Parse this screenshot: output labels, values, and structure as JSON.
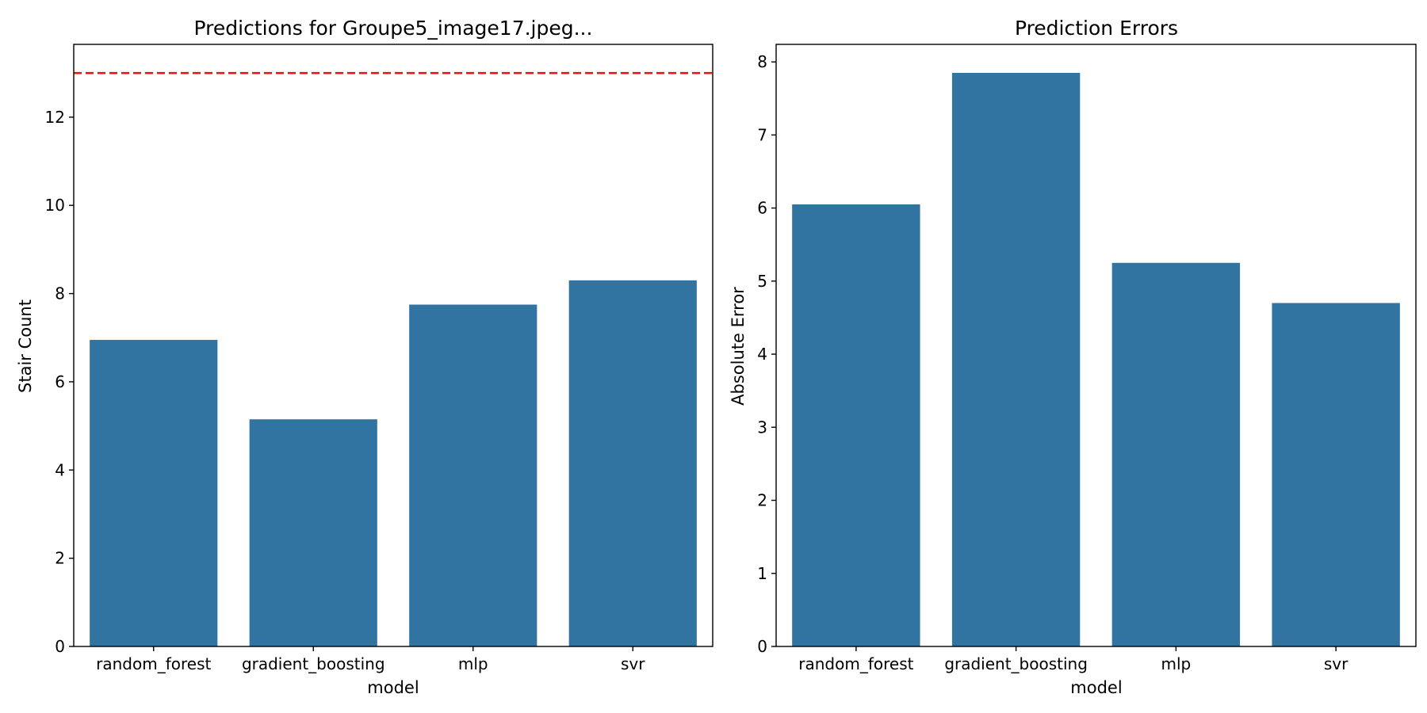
{
  "colors": {
    "bar": "#3274a1",
    "reference_line": "#e8141c"
  },
  "chart_data": [
    {
      "type": "bar",
      "title": "Predictions for Groupe5_image17.jpeg...",
      "xlabel": "model",
      "ylabel": "Stair Count",
      "categories": [
        "random_forest",
        "gradient_boosting",
        "mlp",
        "svr"
      ],
      "values": [
        6.95,
        5.15,
        7.75,
        8.3
      ],
      "ylim": [
        0,
        13.65
      ],
      "yticks": [
        0,
        2,
        4,
        6,
        8,
        10,
        12
      ],
      "ytick_labels": [
        "0",
        "2",
        "4",
        "6",
        "8",
        "10",
        "12"
      ],
      "reference_line": {
        "y": 13,
        "style": "dashed",
        "color": "#e8141c"
      },
      "grid": false
    },
    {
      "type": "bar",
      "title": "Prediction Errors",
      "xlabel": "model",
      "ylabel": "Absolute Error",
      "categories": [
        "random_forest",
        "gradient_boosting",
        "mlp",
        "svr"
      ],
      "values": [
        6.05,
        7.85,
        5.25,
        4.7
      ],
      "ylim": [
        0,
        8.24
      ],
      "yticks": [
        0,
        1,
        2,
        3,
        4,
        5,
        6,
        7,
        8
      ],
      "ytick_labels": [
        "0",
        "1",
        "2",
        "3",
        "4",
        "5",
        "6",
        "7",
        "8"
      ],
      "grid": false
    }
  ]
}
